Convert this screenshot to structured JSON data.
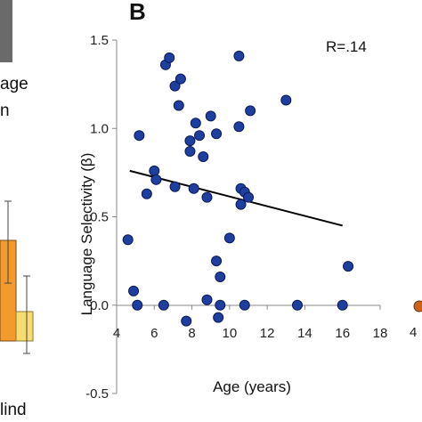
{
  "panel_letter": "B",
  "left_panel": {
    "text_line1": "age",
    "text_line2": "n",
    "bottom_text": "lind"
  },
  "right_panel": {
    "tick_label": "4"
  },
  "colors": {
    "point_fill": "#1f3fa0",
    "point_stroke": "#0a1a55",
    "bar_orange": "#f39a2e",
    "bar_yellow": "#f7dc6f",
    "fit_line": "#000000",
    "right_point": "#c8641e"
  },
  "chart_data": {
    "type": "scatter",
    "title": "",
    "xlabel": "Age (years)",
    "ylabel": "Language Selectivity (β)",
    "xlim": [
      4,
      18
    ],
    "ylim": [
      -0.5,
      1.5
    ],
    "xticks": [
      "4",
      "6",
      "8",
      "10",
      "12",
      "14",
      "16",
      "18"
    ],
    "yticks": [
      "-0.5",
      "0.0",
      "0.5",
      "1.0",
      "1.5"
    ],
    "annotation": "R=.14",
    "points": [
      {
        "x": 6.6,
        "y": 1.36
      },
      {
        "x": 6.8,
        "y": 1.4
      },
      {
        "x": 7.1,
        "y": 1.24
      },
      {
        "x": 7.4,
        "y": 1.28
      },
      {
        "x": 7.3,
        "y": 1.13
      },
      {
        "x": 10.5,
        "y": 1.41
      },
      {
        "x": 5.2,
        "y": 0.96
      },
      {
        "x": 7.9,
        "y": 0.93
      },
      {
        "x": 8.2,
        "y": 1.03
      },
      {
        "x": 8.4,
        "y": 0.96
      },
      {
        "x": 9.0,
        "y": 1.07
      },
      {
        "x": 9.3,
        "y": 0.97
      },
      {
        "x": 10.5,
        "y": 1.01
      },
      {
        "x": 11.1,
        "y": 1.1
      },
      {
        "x": 13.0,
        "y": 1.16
      },
      {
        "x": 7.9,
        "y": 0.87
      },
      {
        "x": 8.6,
        "y": 0.84
      },
      {
        "x": 6.0,
        "y": 0.76
      },
      {
        "x": 6.1,
        "y": 0.71
      },
      {
        "x": 5.6,
        "y": 0.63
      },
      {
        "x": 7.1,
        "y": 0.67
      },
      {
        "x": 8.1,
        "y": 0.66
      },
      {
        "x": 8.8,
        "y": 0.61
      },
      {
        "x": 10.6,
        "y": 0.66
      },
      {
        "x": 10.8,
        "y": 0.64
      },
      {
        "x": 11.0,
        "y": 0.61
      },
      {
        "x": 10.6,
        "y": 0.57
      },
      {
        "x": 4.6,
        "y": 0.37
      },
      {
        "x": 10.0,
        "y": 0.38
      },
      {
        "x": 9.3,
        "y": 0.25
      },
      {
        "x": 9.5,
        "y": 0.16
      },
      {
        "x": 16.3,
        "y": 0.22
      },
      {
        "x": 4.9,
        "y": 0.08
      },
      {
        "x": 8.8,
        "y": 0.03
      },
      {
        "x": 5.1,
        "y": 0.0
      },
      {
        "x": 6.5,
        "y": 0.0
      },
      {
        "x": 9.5,
        "y": 0.0
      },
      {
        "x": 10.8,
        "y": 0.0
      },
      {
        "x": 13.6,
        "y": 0.0
      },
      {
        "x": 16.0,
        "y": 0.0
      },
      {
        "x": 7.7,
        "y": -0.09
      },
      {
        "x": 9.4,
        "y": -0.07
      }
    ],
    "fit_line": {
      "x": [
        4.7,
        16.0
      ],
      "y": [
        0.76,
        0.45
      ]
    }
  }
}
